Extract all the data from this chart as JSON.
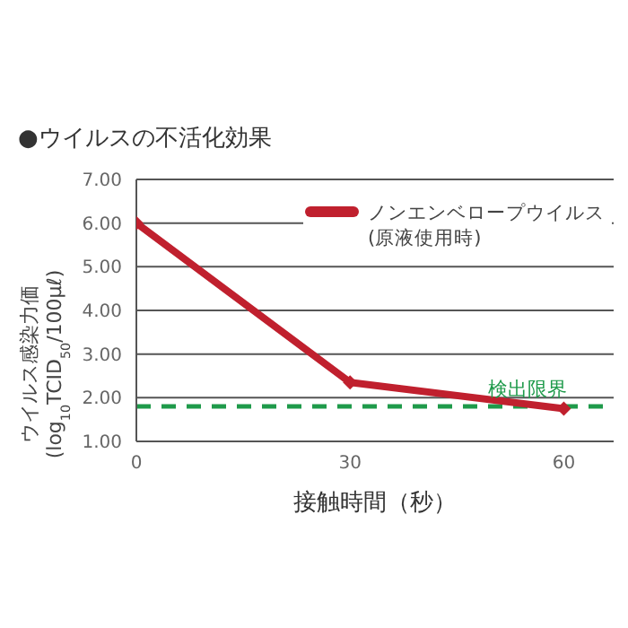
{
  "chart_data": {
    "type": "line",
    "title": "●ウイルスの不活化効果",
    "xlabel": "接触時間（秒）",
    "ylabel": "ウイルス感染力価\n(log$_{10}$TCID$_{50}$/100μℓ)",
    "x": [
      0,
      30,
      60
    ],
    "series": [
      {
        "name": "ノンエンベロープウイルス\n(原液使用時)",
        "color": "#c0202e",
        "values": [
          6.0,
          2.35,
          1.75
        ]
      }
    ],
    "xlim": [
      0,
      67
    ],
    "xticks": [
      0,
      30,
      60
    ],
    "ylim": [
      1,
      7
    ],
    "yticks": [
      {
        "value": 1,
        "label": "1.00"
      },
      {
        "value": 2,
        "label": "2.00"
      },
      {
        "value": 3,
        "label": "3.00"
      },
      {
        "value": 4,
        "label": "4.00"
      },
      {
        "value": 5,
        "label": "5.00"
      },
      {
        "value": 6,
        "label": "6.00"
      },
      {
        "value": 7,
        "label": "7.00"
      }
    ],
    "ref_lines": [
      {
        "axis": "y",
        "value": 1.8,
        "label": "検出限界",
        "color": "#1e9a4a",
        "line_style": "dashed"
      }
    ],
    "grid": "y",
    "legend": "top right",
    "marker": "diamond",
    "line_style": "solid"
  }
}
